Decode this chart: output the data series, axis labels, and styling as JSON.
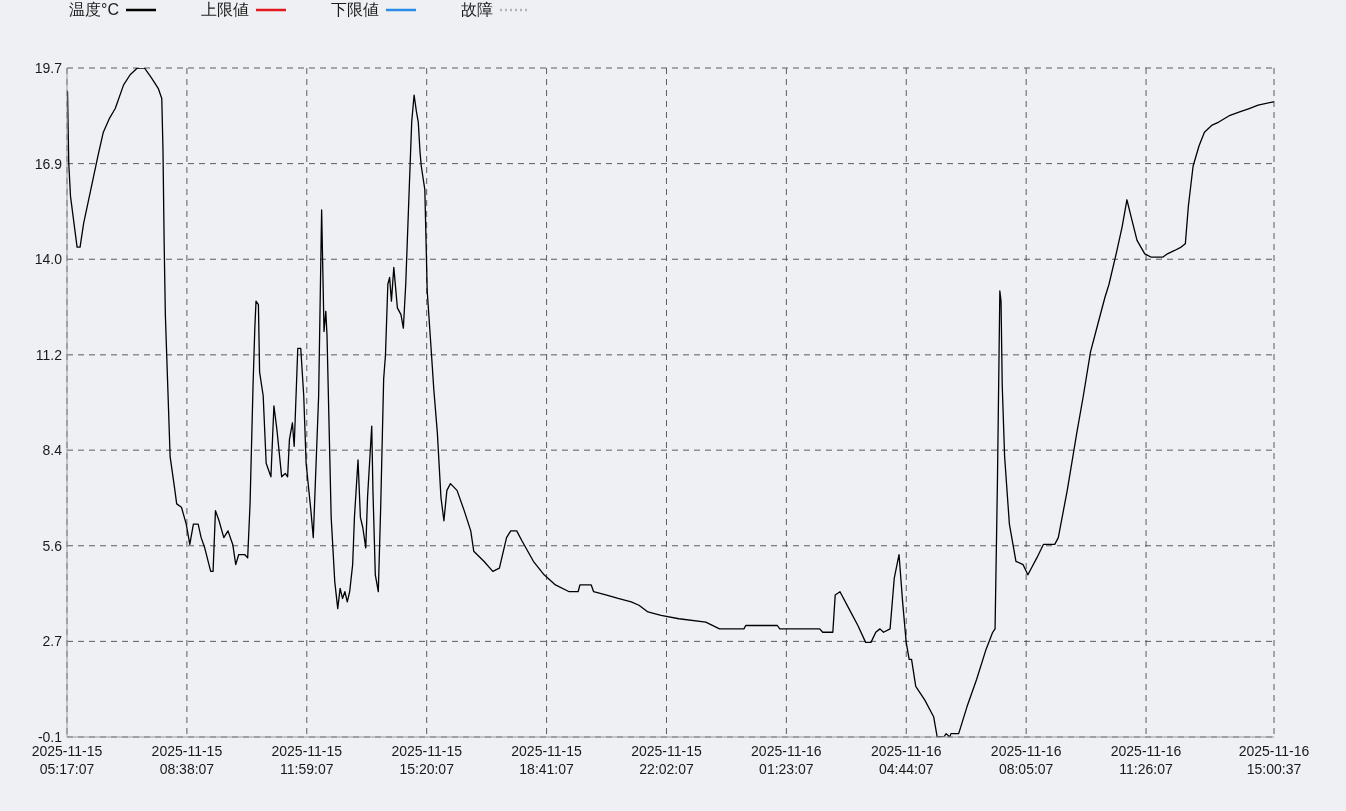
{
  "chart_data": {
    "type": "line",
    "x": [
      "2025-11-15T05:18",
      "2025-11-15T05:20",
      "2025-11-15T05:23",
      "2025-11-15T05:34",
      "2025-11-15T05:39",
      "2025-11-15T05:45",
      "2025-11-15T05:57",
      "2025-11-15T06:09",
      "2025-11-15T06:18",
      "2025-11-15T06:28",
      "2025-11-15T06:38",
      "2025-11-15T06:52",
      "2025-11-15T07:03",
      "2025-11-15T07:15",
      "2025-11-15T07:27",
      "2025-11-15T07:39",
      "2025-11-15T07:50",
      "2025-11-15T07:56",
      "2025-11-15T07:58",
      "2025-11-15T08:00",
      "2025-11-15T08:02",
      "2025-11-15T08:06",
      "2025-11-15T08:10",
      "2025-11-15T08:18",
      "2025-11-15T08:21",
      "2025-11-15T08:29",
      "2025-11-15T08:37",
      "2025-11-15T08:43",
      "2025-11-15T08:49",
      "2025-11-15T08:57",
      "2025-11-15T09:02",
      "2025-11-15T09:08",
      "2025-11-15T09:18",
      "2025-11-15T09:22",
      "2025-11-15T09:26",
      "2025-11-15T09:32",
      "2025-11-15T09:40",
      "2025-11-15T09:47",
      "2025-11-15T09:55",
      "2025-11-15T10:00",
      "2025-11-15T10:05",
      "2025-11-15T10:15",
      "2025-11-15T10:20",
      "2025-11-15T10:24",
      "2025-11-15T10:29",
      "2025-11-15T10:32",
      "2025-11-15T10:34",
      "2025-11-15T10:38",
      "2025-11-15T10:40",
      "2025-11-15T10:46",
      "2025-11-15T10:51",
      "2025-11-15T10:59",
      "2025-11-15T11:04",
      "2025-11-15T11:09",
      "2025-11-15T11:17",
      "2025-11-15T11:23",
      "2025-11-15T11:27",
      "2025-11-15T11:30",
      "2025-11-15T11:35",
      "2025-11-15T11:38",
      "2025-11-15T11:44",
      "2025-11-15T11:49",
      "2025-11-15T11:54",
      "2025-11-15T11:58",
      "2025-11-15T12:06",
      "2025-11-15T12:10",
      "2025-11-15T12:19",
      "2025-11-15T12:24",
      "2025-11-15T12:28",
      "2025-11-15T12:31",
      "2025-11-15T12:33",
      "2025-11-15T12:40",
      "2025-11-15T12:46",
      "2025-11-15T12:51",
      "2025-11-15T12:55",
      "2025-11-15T12:59",
      "2025-11-15T13:03",
      "2025-11-15T13:07",
      "2025-11-15T13:11",
      "2025-11-15T13:16",
      "2025-11-15T13:19",
      "2025-11-15T13:25",
      "2025-11-15T13:29",
      "2025-11-15T13:33",
      "2025-11-15T13:38",
      "2025-11-15T13:41",
      "2025-11-15T13:48",
      "2025-11-15T13:50",
      "2025-11-15T13:54",
      "2025-11-15T13:59",
      "2025-11-15T14:03",
      "2025-11-15T14:08",
      "2025-11-15T14:11",
      "2025-11-15T14:15",
      "2025-11-15T14:18",
      "2025-11-15T14:21",
      "2025-11-15T14:25",
      "2025-11-15T14:31",
      "2025-11-15T14:37",
      "2025-11-15T14:41",
      "2025-11-15T14:45",
      "2025-11-15T14:51",
      "2025-11-15T14:55",
      "2025-11-15T14:59",
      "2025-11-15T15:03",
      "2025-11-15T15:06",
      "2025-11-15T15:09",
      "2025-11-15T15:11",
      "2025-11-15T15:17",
      "2025-11-15T15:21",
      "2025-11-15T15:26",
      "2025-11-15T15:32",
      "2025-11-15T15:38",
      "2025-11-15T15:44",
      "2025-11-15T15:49",
      "2025-11-15T15:54",
      "2025-11-15T16:00",
      "2025-11-15T16:11",
      "2025-11-15T16:23",
      "2025-11-15T16:34",
      "2025-11-15T16:39",
      "2025-11-15T16:56",
      "2025-11-15T17:11",
      "2025-11-15T17:22",
      "2025-11-15T17:34",
      "2025-11-15T17:41",
      "2025-11-15T17:51",
      "2025-11-15T18:00",
      "2025-11-15T18:19",
      "2025-11-15T18:37",
      "2025-11-15T18:56",
      "2025-11-15T19:19",
      "2025-11-15T19:34",
      "2025-11-15T19:37",
      "2025-11-15T19:56",
      "2025-11-15T20:00",
      "2025-11-15T20:22",
      "2025-11-15T20:41",
      "2025-11-15T21:03",
      "2025-11-15T21:16",
      "2025-11-15T21:31",
      "2025-11-15T21:53",
      "2025-11-15T22:23",
      "2025-11-15T23:08",
      "2025-11-15T23:31",
      "2025-11-16T00:12",
      "2025-11-16T00:15",
      "2025-11-16T01:08",
      "2025-11-16T01:12",
      "2025-11-16T02:19",
      "2025-11-16T02:24",
      "2025-11-16T02:41",
      "2025-11-16T02:45",
      "2025-11-16T02:53",
      "2025-11-16T03:08",
      "2025-11-16T03:23",
      "2025-11-16T03:36",
      "2025-11-16T03:45",
      "2025-11-16T03:53",
      "2025-11-16T04:00",
      "2025-11-16T04:06",
      "2025-11-16T04:17",
      "2025-11-16T04:24",
      "2025-11-16T04:32",
      "2025-11-16T04:38",
      "2025-11-16T04:44",
      "2025-11-16T04:49",
      "2025-11-16T04:53",
      "2025-11-16T05:00",
      "2025-11-16T05:15",
      "2025-11-16T05:30",
      "2025-11-16T05:36",
      "2025-11-16T05:47",
      "2025-11-16T05:51",
      "2025-11-16T05:57",
      "2025-11-16T05:59",
      "2025-11-16T06:12",
      "2025-11-16T06:26",
      "2025-11-16T06:42",
      "2025-11-16T06:58",
      "2025-11-16T07:09",
      "2025-11-16T07:13",
      "2025-11-16T07:17",
      "2025-11-16T07:21",
      "2025-11-16T07:23",
      "2025-11-16T07:25",
      "2025-11-16T07:29",
      "2025-11-16T07:37",
      "2025-11-16T07:48",
      "2025-11-16T08:00",
      "2025-11-16T08:08",
      "2025-11-16T08:14",
      "2025-11-16T08:23",
      "2025-11-16T08:34",
      "2025-11-16T08:53",
      "2025-11-16T08:59",
      "2025-11-16T09:14",
      "2025-11-16T09:30",
      "2025-11-16T09:41",
      "2025-11-16T09:53",
      "2025-11-16T10:05",
      "2025-11-16T10:17",
      "2025-11-16T10:24",
      "2025-11-16T10:36",
      "2025-11-16T10:46",
      "2025-11-16T10:54",
      "2025-11-16T11:01",
      "2025-11-16T11:11",
      "2025-11-16T11:24",
      "2025-11-16T11:35",
      "2025-11-16T11:54",
      "2025-11-16T12:02",
      "2025-11-16T12:14",
      "2025-11-16T12:25",
      "2025-11-16T12:32",
      "2025-11-16T12:37",
      "2025-11-16T12:45",
      "2025-11-16T12:55",
      "2025-11-16T13:04",
      "2025-11-16T13:16",
      "2025-11-16T13:28",
      "2025-11-16T13:47",
      "2025-11-16T14:03",
      "2025-11-16T14:19",
      "2025-11-16T14:34",
      "2025-11-16T15:00"
    ],
    "series": [
      {
        "name": "温度°C",
        "color": "#000000",
        "values": [
          19.0,
          16.9,
          15.9,
          14.4,
          14.4,
          15.1,
          16.1,
          17.1,
          17.8,
          18.2,
          18.5,
          19.2,
          19.5,
          19.7,
          19.7,
          19.4,
          19.1,
          18.8,
          17.3,
          14.5,
          12.4,
          10.3,
          8.2,
          7.2,
          6.8,
          6.7,
          6.2,
          5.6,
          6.2,
          6.2,
          5.8,
          5.5,
          4.8,
          4.8,
          6.6,
          6.3,
          5.8,
          6.0,
          5.6,
          5.0,
          5.3,
          5.3,
          5.2,
          6.8,
          10.3,
          12.0,
          12.8,
          12.7,
          10.7,
          10.0,
          8.0,
          7.6,
          9.7,
          9.0,
          7.6,
          7.7,
          7.6,
          8.7,
          9.2,
          8.5,
          11.4,
          11.4,
          10.0,
          8.0,
          6.6,
          5.8,
          10.0,
          15.5,
          11.9,
          12.5,
          11.8,
          6.4,
          4.5,
          3.7,
          4.3,
          4.0,
          4.2,
          3.9,
          4.2,
          5.0,
          6.4,
          8.1,
          6.4,
          6.1,
          5.5,
          7.0,
          9.1,
          7.2,
          4.7,
          4.2,
          6.7,
          10.5,
          11.2,
          13.3,
          13.5,
          12.8,
          13.8,
          12.6,
          12.4,
          12.0,
          13.3,
          16.2,
          18.1,
          18.9,
          18.4,
          18.1,
          17.2,
          16.8,
          16.1,
          13.1,
          11.8,
          10.2,
          8.9,
          7.0,
          6.3,
          7.2,
          7.4,
          7.2,
          6.6,
          6.0,
          5.4,
          5.1,
          4.8,
          4.9,
          5.8,
          6.0,
          6.0,
          5.7,
          5.1,
          4.7,
          4.4,
          4.2,
          4.2,
          4.4,
          4.4,
          4.2,
          4.1,
          4.0,
          3.9,
          3.8,
          3.6,
          3.5,
          3.4,
          3.3,
          3.1,
          3.1,
          3.2,
          3.2,
          3.1,
          3.1,
          3.0,
          3.0,
          4.1,
          4.2,
          3.7,
          3.2,
          2.7,
          2.7,
          3.0,
          3.1,
          3.0,
          3.1,
          4.6,
          5.3,
          3.9,
          2.7,
          2.2,
          2.2,
          1.4,
          1.0,
          0.5,
          -0.1,
          -0.1,
          0.0,
          -0.1,
          0.0,
          0.0,
          0.8,
          1.6,
          2.5,
          3.0,
          3.1,
          7.5,
          13.1,
          12.8,
          10.3,
          8.2,
          6.2,
          5.1,
          5.0,
          4.7,
          4.9,
          5.2,
          5.6,
          5.6,
          5.8,
          7.2,
          8.9,
          10.0,
          11.3,
          12.1,
          12.9,
          13.3,
          14.2,
          15.0,
          15.8,
          15.3,
          14.6,
          14.2,
          14.1,
          14.1,
          14.2,
          14.3,
          14.4,
          14.5,
          15.6,
          16.8,
          17.4,
          17.8,
          18.0,
          18.1,
          18.3,
          18.4,
          18.5,
          18.6,
          18.7
        ]
      },
      {
        "name": "上限値",
        "color": "#e31a1c",
        "values": [
          null,
          null,
          null,
          null,
          null,
          null,
          null,
          null,
          null,
          null,
          null,
          null,
          null,
          null,
          null,
          null,
          null,
          null,
          null,
          null,
          null,
          null,
          null,
          null,
          null,
          null,
          null,
          null,
          null,
          null,
          null,
          null,
          null,
          null,
          null,
          null,
          null,
          null,
          null,
          null,
          null,
          null,
          null,
          null,
          null,
          null,
          null,
          null,
          null,
          null,
          null,
          null,
          null,
          null,
          null,
          null,
          null,
          null,
          null,
          null,
          null,
          null,
          null,
          null,
          null,
          null,
          null,
          null,
          null,
          null,
          null,
          null,
          null,
          null,
          null,
          null,
          null,
          null,
          null,
          null,
          null,
          null,
          null,
          null,
          null,
          null,
          null,
          null,
          null,
          null,
          null,
          null,
          null,
          null,
          null,
          null,
          null,
          null,
          null,
          null,
          null,
          null,
          null,
          null,
          null,
          null,
          null,
          null,
          null,
          null,
          null,
          null,
          null,
          null,
          null,
          null,
          null,
          null,
          null,
          null,
          null,
          null,
          null,
          null,
          null,
          null,
          null,
          null,
          null,
          null,
          null,
          null,
          null,
          null,
          null,
          null,
          null,
          null,
          null,
          null,
          null,
          null,
          null,
          null,
          null,
          null,
          null,
          null,
          null,
          null,
          null,
          null,
          null,
          null,
          null,
          null,
          null,
          null,
          null,
          null,
          null,
          null,
          null,
          null,
          null,
          null,
          null,
          null,
          null,
          null,
          null,
          null,
          null,
          null,
          null,
          null,
          null,
          null,
          null,
          null,
          null,
          null,
          null,
          null,
          null,
          null,
          null,
          null,
          null,
          null,
          null,
          null,
          null,
          null,
          null,
          null,
          null,
          null,
          null,
          null,
          null,
          null,
          null,
          null,
          null,
          null,
          null,
          null,
          null,
          null,
          null,
          null,
          null,
          null,
          null,
          null,
          null,
          null,
          null,
          null,
          null,
          null,
          null,
          null,
          null,
          null
        ]
      },
      {
        "name": "下限値",
        "color": "#2b8ce6",
        "values": [
          null,
          null,
          null,
          null,
          null,
          null,
          null,
          null,
          null,
          null,
          null,
          null,
          null,
          null,
          null,
          null,
          null,
          null,
          null,
          null,
          null,
          null,
          null,
          null,
          null,
          null,
          null,
          null,
          null,
          null,
          null,
          null,
          null,
          null,
          null,
          null,
          null,
          null,
          null,
          null,
          null,
          null,
          null,
          null,
          null,
          null,
          null,
          null,
          null,
          null,
          null,
          null,
          null,
          null,
          null,
          null,
          null,
          null,
          null,
          null,
          null,
          null,
          null,
          null,
          null,
          null,
          null,
          null,
          null,
          null,
          null,
          null,
          null,
          null,
          null,
          null,
          null,
          null,
          null,
          null,
          null,
          null,
          null,
          null,
          null,
          null,
          null,
          null,
          null,
          null,
          null,
          null,
          null,
          null,
          null,
          null,
          null,
          null,
          null,
          null,
          null,
          null,
          null,
          null,
          null,
          null,
          null,
          null,
          null,
          null,
          null,
          null,
          null,
          null,
          null,
          null,
          null,
          null,
          null,
          null,
          null,
          null,
          null,
          null,
          null,
          null,
          null,
          null,
          null,
          null,
          null,
          null,
          null,
          null,
          null,
          null,
          null,
          null,
          null,
          null,
          null,
          null,
          null,
          null,
          null,
          null,
          null,
          null,
          null,
          null,
          null,
          null,
          null,
          null,
          null,
          null,
          null,
          null,
          null,
          null,
          null,
          null,
          null,
          null,
          null,
          null,
          null,
          null,
          null,
          null,
          null,
          null,
          null,
          null,
          null,
          null,
          null,
          null,
          null,
          null,
          null,
          null,
          null,
          null,
          null,
          null,
          null,
          null,
          null,
          null,
          null,
          null,
          null,
          null,
          null,
          null,
          null,
          null,
          null,
          null,
          null,
          null,
          null,
          null,
          null,
          null,
          null,
          null,
          null,
          null,
          null,
          null,
          null,
          null,
          null,
          null,
          null,
          null,
          null,
          null,
          null,
          null,
          null,
          null,
          null,
          null
        ]
      },
      {
        "name": "故障",
        "color": "#b4b4b4",
        "line_style": "dotted",
        "values": [
          null,
          null,
          null,
          null,
          null,
          null,
          null,
          null,
          null,
          null,
          null,
          null,
          null,
          null,
          null,
          null,
          null,
          null,
          null,
          null,
          null,
          null,
          null,
          null,
          null,
          null,
          null,
          null,
          null,
          null,
          null,
          null,
          null,
          null,
          null,
          null,
          null,
          null,
          null,
          null,
          null,
          null,
          null,
          null,
          null,
          null,
          null,
          null,
          null,
          null,
          null,
          null,
          null,
          null,
          null,
          null,
          null,
          null,
          null,
          null,
          null,
          null,
          null,
          null,
          null,
          null,
          null,
          null,
          null,
          null,
          null,
          null,
          null,
          null,
          null,
          null,
          null,
          null,
          null,
          null,
          null,
          null,
          null,
          null,
          null,
          null,
          null,
          null,
          null,
          null,
          null,
          null,
          null,
          null,
          null,
          null,
          null,
          null,
          null,
          null,
          null,
          null,
          null,
          null,
          null,
          null,
          null,
          null,
          null,
          null,
          null,
          null,
          null,
          null,
          null,
          null,
          null,
          null,
          null,
          null,
          null,
          null,
          null,
          null,
          null,
          null,
          null,
          null,
          null,
          null,
          null,
          null,
          null,
          null,
          null,
          null,
          null,
          null,
          null,
          null,
          null,
          null,
          null,
          null,
          null,
          null,
          null,
          null,
          null,
          null,
          null,
          null,
          null,
          null,
          null,
          null,
          null,
          null,
          null,
          null,
          null,
          null,
          null,
          null,
          null,
          null,
          null,
          null,
          null,
          null,
          null,
          null,
          null,
          null,
          null,
          null,
          null,
          null,
          null,
          null,
          null,
          null,
          null,
          null,
          null,
          null,
          null,
          null,
          null,
          null,
          null,
          null,
          null,
          null,
          null,
          null,
          null,
          null,
          null,
          null,
          null,
          null,
          null,
          null,
          null,
          null,
          null,
          null,
          null,
          null,
          null,
          null,
          null,
          null,
          null,
          null,
          null,
          null,
          null,
          null,
          null,
          null,
          null,
          null,
          null,
          null
        ]
      }
    ],
    "xlim": [
      "2025-11-15T05:17:07",
      "2025-11-16T15:00:37"
    ],
    "xticks": [
      {
        "value": "2025-11-15T05:17:07",
        "label": "2025-11-15\n05:17:07"
      },
      {
        "value": "2025-11-15T08:38:07",
        "label": "2025-11-15\n08:38:07"
      },
      {
        "value": "2025-11-15T11:59:07",
        "label": "2025-11-15\n11:59:07"
      },
      {
        "value": "2025-11-15T15:20:07",
        "label": "2025-11-15\n15:20:07"
      },
      {
        "value": "2025-11-15T18:41:07",
        "label": "2025-11-15\n18:41:07"
      },
      {
        "value": "2025-11-15T22:02:07",
        "label": "2025-11-15\n22:02:07"
      },
      {
        "value": "2025-11-16T01:23:07",
        "label": "2025-11-16\n01:23:07"
      },
      {
        "value": "2025-11-16T04:44:07",
        "label": "2025-11-16\n04:44:07"
      },
      {
        "value": "2025-11-16T08:05:07",
        "label": "2025-11-16\n08:05:07"
      },
      {
        "value": "2025-11-16T11:26:07",
        "label": "2025-11-16\n11:26:07"
      },
      {
        "value": "2025-11-16T15:00:37",
        "label": "2025-11-16\n15:00:37"
      }
    ],
    "ylim": [
      -0.1,
      19.7
    ],
    "yticks": [
      -0.1,
      {
        "value": 2.73,
        "label": "2.7"
      },
      {
        "value": 5.56,
        "label": "5.6"
      },
      {
        "value": 8.39,
        "label": "8.4"
      },
      {
        "value": 11.21,
        "label": "11.2"
      },
      {
        "value": 14.04,
        "label": "14.0"
      },
      {
        "value": 16.87,
        "label": "16.9"
      },
      19.7
    ],
    "grid": true,
    "legend": "top left",
    "marker": "none"
  }
}
